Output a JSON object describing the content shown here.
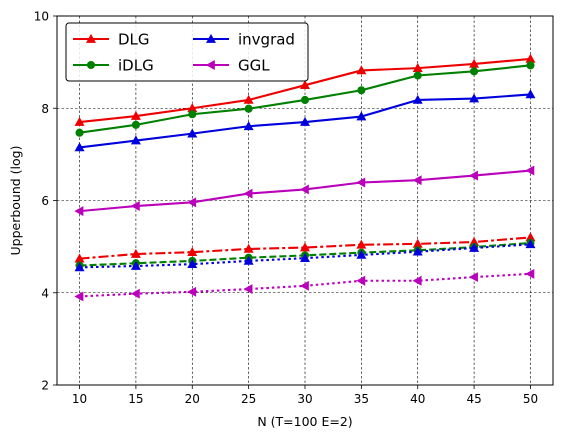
{
  "chart_data": {
    "type": "line",
    "title": "",
    "xlabel": "N (T=100 E=2)",
    "ylabel": "Upperbound (log)",
    "x": [
      10,
      15,
      20,
      25,
      30,
      35,
      40,
      45,
      50
    ],
    "xlim": [
      8,
      52
    ],
    "ylim": [
      2,
      10
    ],
    "xticks": [
      10,
      15,
      20,
      25,
      30,
      35,
      40,
      45,
      50
    ],
    "yticks": [
      2,
      4,
      6,
      8,
      10
    ],
    "grid": true,
    "legend_position": "top-left",
    "legend_entries": [
      {
        "name": "DLG",
        "color": "#ee0000",
        "marker": "triangle-up"
      },
      {
        "name": "iDLG",
        "color": "#008000",
        "marker": "circle"
      },
      {
        "name": "invgrad",
        "color": "#0000dd",
        "marker": "triangle-up"
      },
      {
        "name": "GGL",
        "color": "#bb00bb",
        "marker": "triangle-left"
      }
    ],
    "series": [
      {
        "color": "#ee0000",
        "marker": "triangle-up",
        "linestyle": "solid",
        "values": [
          7.7,
          7.83,
          8.0,
          8.18,
          8.5,
          8.82,
          8.87,
          8.96,
          9.07
        ]
      },
      {
        "color": "#008000",
        "marker": "circle",
        "linestyle": "solid",
        "values": [
          7.47,
          7.64,
          7.87,
          7.99,
          8.18,
          8.39,
          8.71,
          8.8,
          8.93
        ]
      },
      {
        "color": "#0000dd",
        "marker": "triangle-up",
        "linestyle": "solid",
        "values": [
          7.15,
          7.3,
          7.45,
          7.61,
          7.7,
          7.82,
          8.18,
          8.21,
          8.3
        ]
      },
      {
        "color": "#bb00bb",
        "marker": "triangle-left",
        "linestyle": "solid",
        "values": [
          5.77,
          5.88,
          5.96,
          6.15,
          6.24,
          6.39,
          6.44,
          6.54,
          6.65
        ]
      },
      {
        "color": "#ee0000",
        "marker": "triangle-up",
        "linestyle": "dashdot",
        "values": [
          4.74,
          4.84,
          4.88,
          4.95,
          4.98,
          5.04,
          5.06,
          5.1,
          5.2
        ]
      },
      {
        "color": "#008000",
        "marker": "circle",
        "linestyle": "dashed",
        "values": [
          4.59,
          4.64,
          4.69,
          4.76,
          4.81,
          4.87,
          4.92,
          4.99,
          5.08
        ]
      },
      {
        "color": "#0000dd",
        "marker": "triangle-up",
        "linestyle": "dotted",
        "values": [
          4.55,
          4.58,
          4.62,
          4.69,
          4.75,
          4.82,
          4.89,
          4.97,
          5.05
        ]
      },
      {
        "color": "#bb00bb",
        "marker": "triangle-left",
        "linestyle": "dotted",
        "values": [
          3.92,
          3.98,
          4.02,
          4.08,
          4.15,
          4.26,
          4.26,
          4.34,
          4.41
        ]
      }
    ]
  }
}
